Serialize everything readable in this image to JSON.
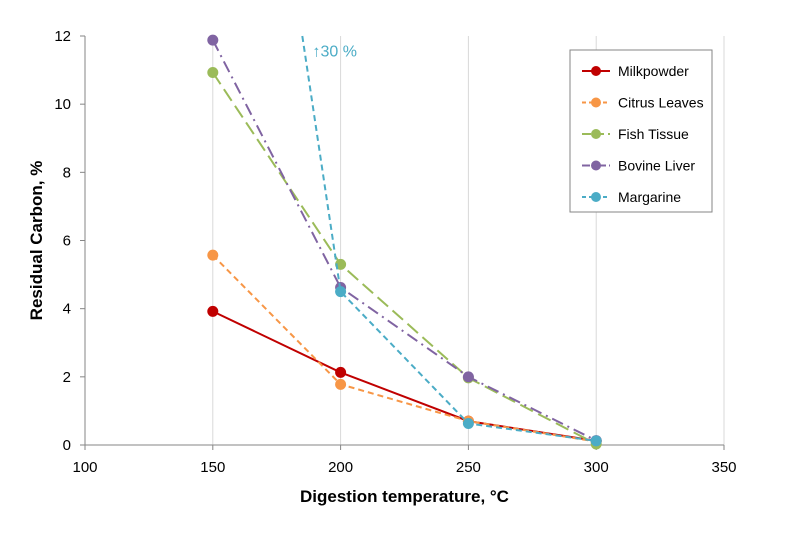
{
  "chart_data": {
    "type": "line",
    "title": "",
    "xlabel": "Digestion temperature, °C",
    "ylabel": "Residual Carbon, %",
    "xlim": [
      100,
      350
    ],
    "ylim": [
      0,
      12
    ],
    "x_ticks": [
      100,
      150,
      200,
      250,
      300,
      350
    ],
    "y_ticks": [
      0,
      2,
      4,
      6,
      8,
      10,
      12
    ],
    "x_tick_labels": [
      "100",
      "150",
      "200",
      "250",
      "300",
      "350"
    ],
    "y_tick_labels": [
      "0",
      "2",
      "4",
      "6",
      "8",
      "10",
      "12"
    ],
    "grid": "vertical",
    "legend_position": "top-right",
    "series": [
      {
        "name": "Milkpowder",
        "color": "#c00000",
        "dash": "solid",
        "x": [
          150,
          200,
          250,
          300
        ],
        "values": [
          3.92,
          2.13,
          0.7,
          0.12
        ]
      },
      {
        "name": "Citrus Leaves",
        "color": "#f79646",
        "dash": "dash",
        "x": [
          150,
          200,
          250,
          300
        ],
        "values": [
          5.57,
          1.78,
          0.7,
          0.1
        ]
      },
      {
        "name": "Fish Tissue",
        "color": "#9bbb59",
        "dash": "longdash",
        "x": [
          150,
          200,
          250,
          300
        ],
        "values": [
          10.93,
          5.3,
          1.97,
          0.03
        ]
      },
      {
        "name": "Bovine Liver",
        "color": "#8064a2",
        "dash": "dashdot",
        "x": [
          150,
          200,
          250,
          300
        ],
        "values": [
          11.88,
          4.62,
          2.0,
          0.13
        ]
      },
      {
        "name": "Margarine",
        "color": "#4bacc6",
        "dash": "dash",
        "x": [
          200,
          250,
          300
        ],
        "values": [
          4.5,
          0.63,
          0.12
        ],
        "off_scale_start": {
          "x": 185,
          "y": 12
        }
      }
    ],
    "annotations": [
      {
        "text": "↑30 %",
        "x": 189,
        "y": 11.4,
        "color": "#4bacc6"
      }
    ]
  }
}
